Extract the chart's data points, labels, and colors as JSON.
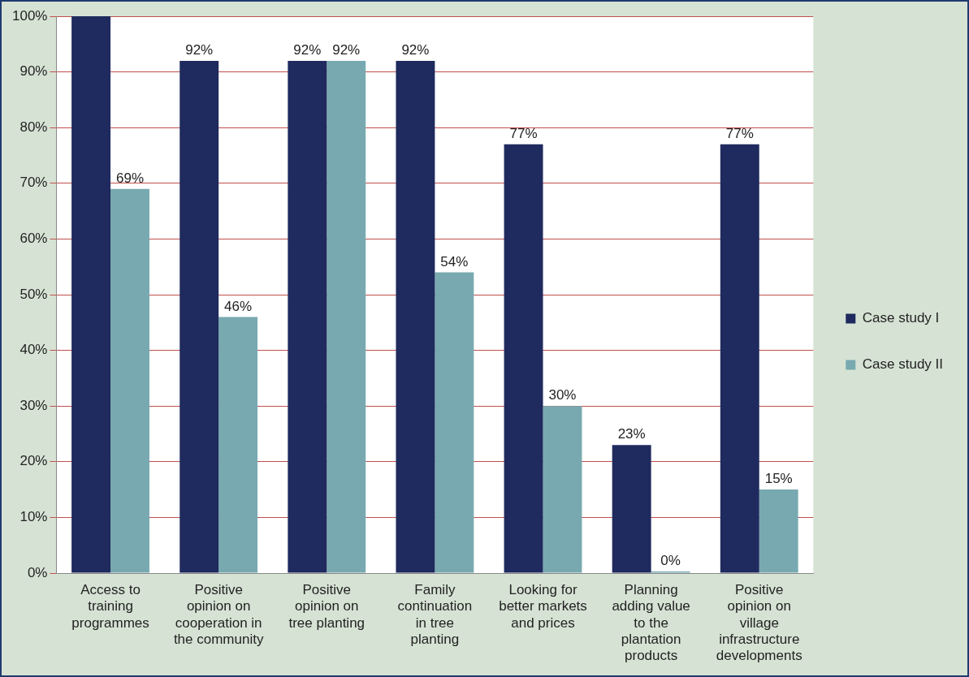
{
  "chart_data": {
    "type": "bar",
    "categories": [
      "Access to training programmes",
      "Positive opinion on cooperation in the community",
      "Positive opinion on tree planting",
      "Family continuation in tree planting",
      "Looking for better markets and prices",
      "Planning adding value to the plantation products",
      "Positive opinion on village infrastructure developments"
    ],
    "series": [
      {
        "name": "Case study I",
        "color": "#1f2a5e",
        "values": [
          100,
          92,
          92,
          92,
          77,
          23,
          77
        ],
        "value_labels": [
          null,
          "92%",
          "92%",
          "92%",
          "77%",
          "23%",
          "77%"
        ]
      },
      {
        "name": "Case study II",
        "color": "#78a9b0",
        "values": [
          69,
          46,
          92,
          54,
          30,
          0,
          15
        ],
        "value_labels": [
          "69%",
          "46%",
          "92%",
          "54%",
          "30%",
          "0%",
          "15%"
        ]
      }
    ],
    "ylim": [
      0,
      100
    ],
    "yticks": [
      {
        "value": 0,
        "label": "0%"
      },
      {
        "value": 10,
        "label": "10%"
      },
      {
        "value": 20,
        "label": "20%"
      },
      {
        "value": 30,
        "label": "30%"
      },
      {
        "value": 40,
        "label": "40%"
      },
      {
        "value": 50,
        "label": "50%"
      },
      {
        "value": 60,
        "label": "60%"
      },
      {
        "value": 70,
        "label": "70%"
      },
      {
        "value": 80,
        "label": "80%"
      },
      {
        "value": 90,
        "label": "90%"
      },
      {
        "value": 100,
        "label": "100%"
      }
    ],
    "grid": "y",
    "legend": "right"
  }
}
